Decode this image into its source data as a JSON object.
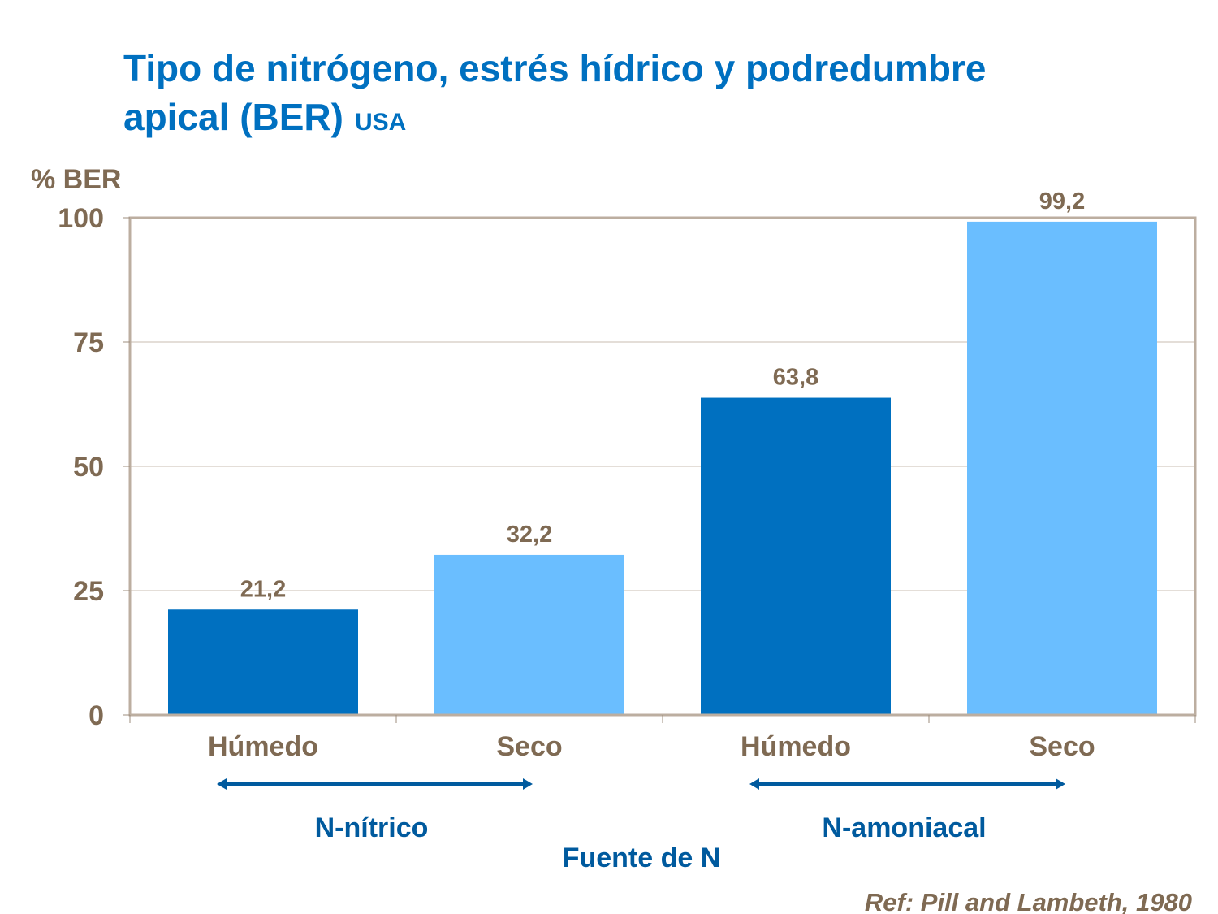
{
  "chart_data": {
    "type": "bar",
    "title": "Tipo de nitrógeno, estrés hídrico y podredumbre apical (BER)",
    "title_line1": "Tipo de nitrógeno, estrés hídrico y podredumbre",
    "title_line2": "apical (BER)",
    "subtitle": "USA",
    "ylabel": "% BER",
    "xlabel": "Fuente de N",
    "ylim": [
      0,
      100
    ],
    "yticks": [
      0,
      25,
      50,
      75,
      100
    ],
    "grid": true,
    "categories": [
      "Húmedo",
      "Seco",
      "Húmedo",
      "Seco"
    ],
    "values": [
      21.2,
      32.2,
      63.8,
      99.2
    ],
    "data_labels": [
      "21,2",
      "32,2",
      "63,8",
      "99,2"
    ],
    "bar_colors": [
      "#0070c0",
      "#6abeff",
      "#0070c0",
      "#6abeff"
    ],
    "groups": [
      {
        "label": "N-nítrico",
        "categories": [
          0,
          1
        ]
      },
      {
        "label": "N-amoniacal",
        "categories": [
          2,
          3
        ]
      }
    ],
    "reference": "Ref: Pill and Lambeth, 1980"
  },
  "colors": {
    "title": "#0070c0",
    "axis_text": "#7f6a53",
    "group_text": "#005a9e",
    "frame": "#bcaea0",
    "grid": "#c8bdb2"
  }
}
